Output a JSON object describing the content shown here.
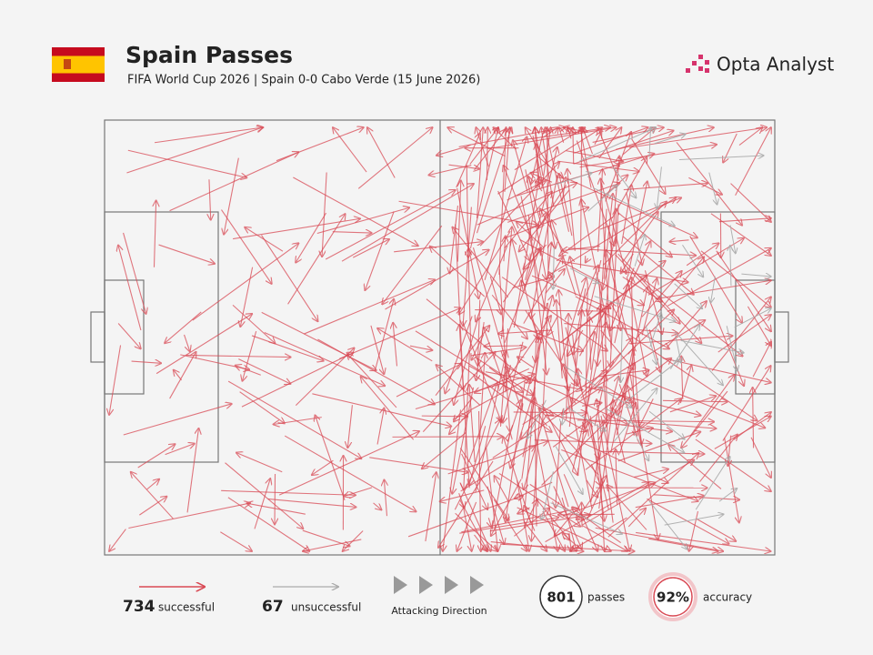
{
  "header": {
    "title": "Spain Passes",
    "subtitle": "FIFA World Cup 2026 | Spain 0-0 Cabo Verde (15 June 2026)",
    "brand": "Opta Analyst"
  },
  "legend": {
    "successful": {
      "count": "734",
      "label": "successful"
    },
    "unsuccessful": {
      "count": "67",
      "label": "unsuccessful"
    },
    "direction": "Attacking Direction"
  },
  "stats": {
    "passes": {
      "value": "801",
      "label": "passes"
    },
    "accuracy": {
      "value": "92%",
      "label": "accuracy"
    }
  }
}
